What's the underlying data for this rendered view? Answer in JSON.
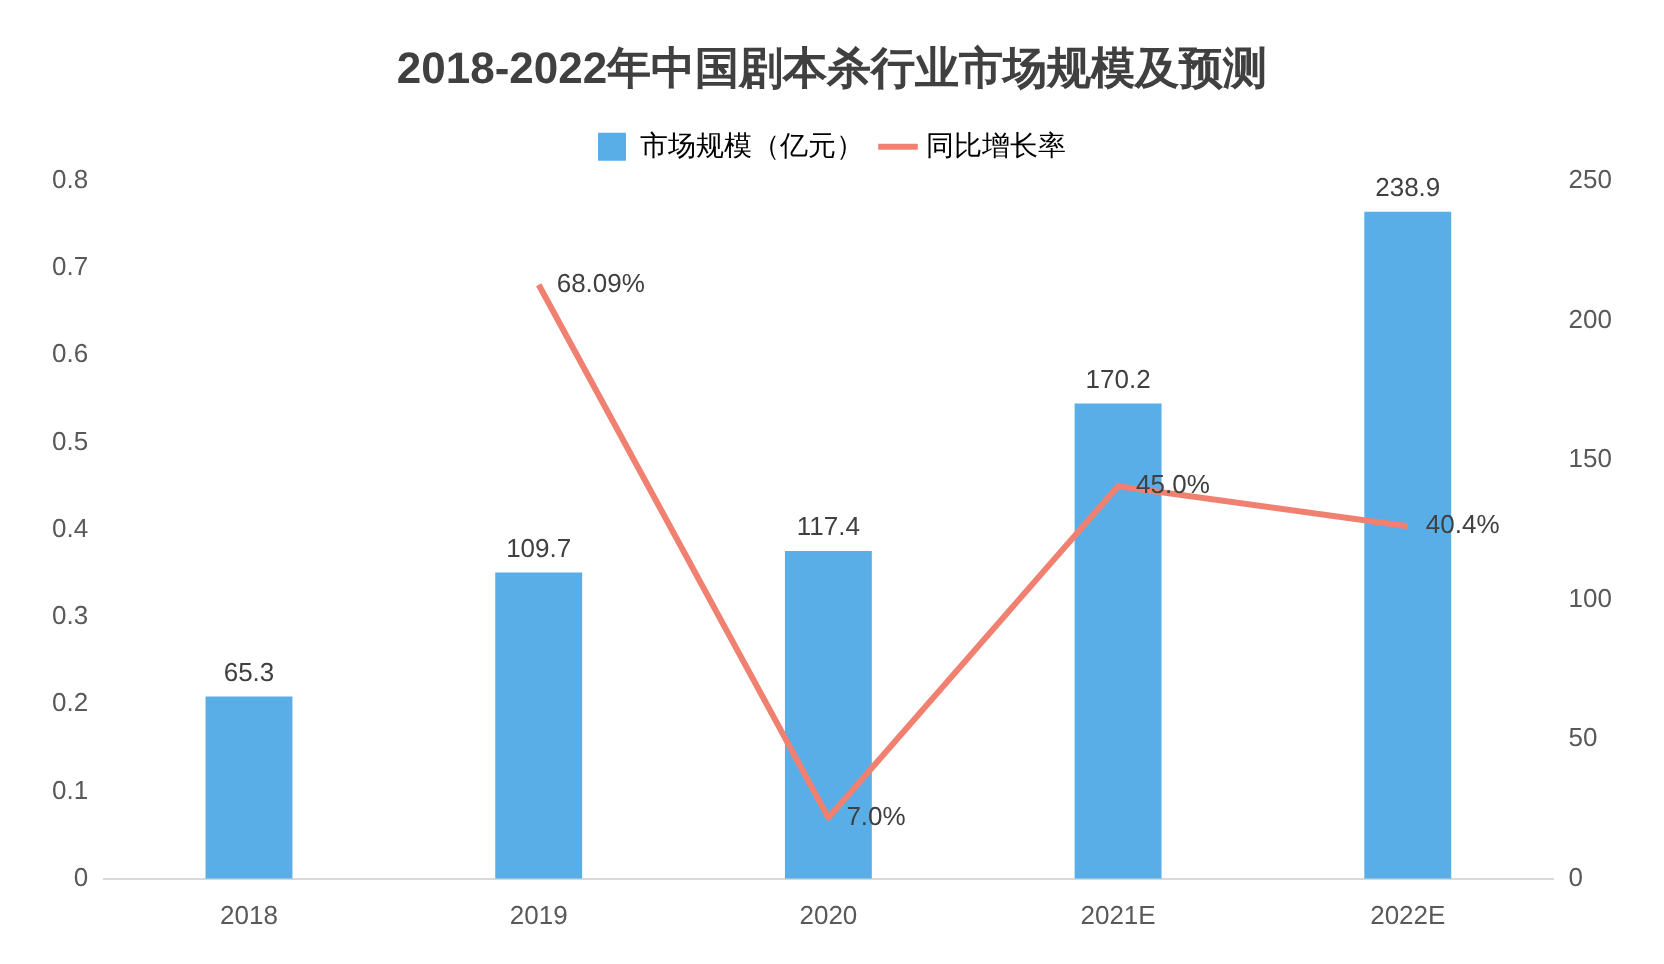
{
  "chart_data": {
    "type": "bar",
    "title": "2018-2022年中国剧本杀行业市场规模及预测",
    "categories": [
      "2018",
      "2019",
      "2020",
      "2021E",
      "2022E"
    ],
    "series": [
      {
        "name": "市场规模（亿元）",
        "axis": "y2",
        "color": "#5aaee8",
        "values": [
          65.3,
          109.7,
          117.4,
          170.2,
          238.9
        ],
        "value_labels": [
          "65.3",
          "109.7",
          "117.4",
          "170.2",
          "238.9"
        ]
      },
      {
        "name": "同比增长率",
        "type": "line",
        "axis": "y",
        "color": "#f08070",
        "values": [
          null,
          0.6809,
          0.07,
          0.45,
          0.404
        ],
        "value_labels": [
          null,
          "68.09%",
          "7.0%",
          "45.0%",
          "40.4%"
        ]
      }
    ],
    "ylim": [
      0,
      0.8
    ],
    "yticks": [
      0,
      0.1,
      0.2,
      0.3,
      0.4,
      0.5,
      0.6,
      0.7,
      0.8
    ],
    "y2lim": [
      0,
      250
    ],
    "y2ticks": [
      0,
      50,
      100,
      150,
      200,
      250
    ],
    "grid": false,
    "legend": "top",
    "marker": "none",
    "line_style": "solid"
  }
}
